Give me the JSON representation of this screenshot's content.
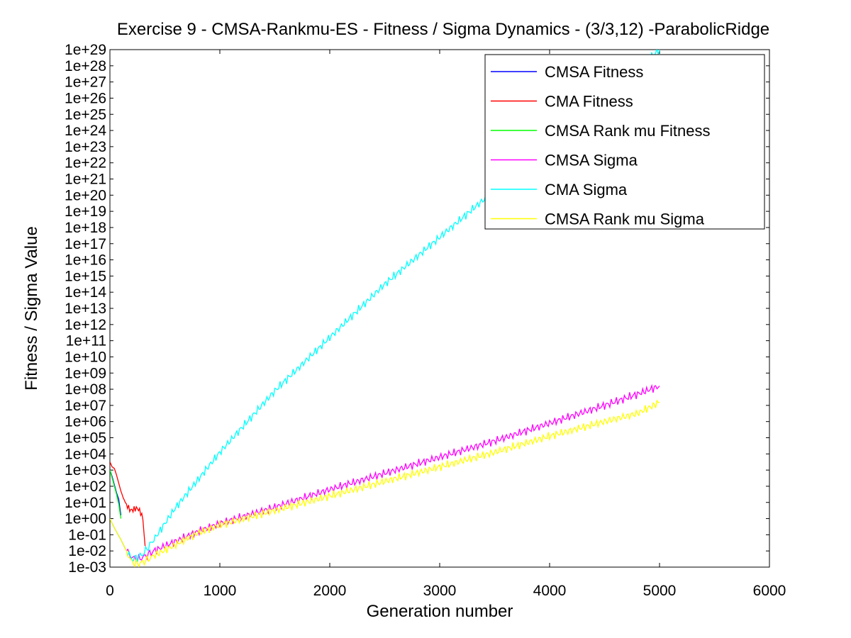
{
  "chart_data": {
    "type": "line",
    "title": "Exercise 9 - CMSA-Rankmu-ES - Fitness / Sigma Dynamics - (3/3,12) -ParabolicRidge",
    "xlabel": "Generation number",
    "ylabel": "Fitness / Sigma Value",
    "xlim": [
      0,
      6000
    ],
    "ylim_log10": [
      -3,
      29
    ],
    "y_scale": "log",
    "xticks": [
      0,
      1000,
      2000,
      3000,
      4000,
      5000,
      6000
    ],
    "xtick_labels": [
      "0",
      "1000",
      "2000",
      "3000",
      "4000",
      "5000",
      "6000"
    ],
    "ytick_labels": [
      "1e-03",
      "1e-02",
      "1e-01",
      "1e+00",
      "1e+01",
      "1e+02",
      "1e+03",
      "1e+04",
      "1e+05",
      "1e+06",
      "1e+07",
      "1e+08",
      "1e+09",
      "1e+10",
      "1e+11",
      "1e+12",
      "1e+13",
      "1e+14",
      "1e+15",
      "1e+16",
      "1e+17",
      "1e+18",
      "1e+19",
      "1e+20",
      "1e+21",
      "1e+22",
      "1e+23",
      "1e+24",
      "1e+25",
      "1e+26",
      "1e+27",
      "1e+28",
      "1e+29"
    ],
    "grid": false,
    "legend_position": "top-right",
    "series": [
      {
        "name": "CMSA Fitness",
        "color": "#0000ff",
        "x": [
          0,
          20,
          40,
          60,
          80,
          100
        ],
        "log10_y": [
          3.0,
          2.6,
          2.1,
          1.6,
          1.2,
          0.2
        ]
      },
      {
        "name": "CMA Fitness",
        "color": "#ff0000",
        "x": [
          0,
          20,
          40,
          60,
          80,
          100,
          120,
          140,
          160,
          180,
          200,
          230,
          260,
          280,
          300,
          310,
          320
        ],
        "log10_y": [
          3.5,
          3.2,
          3.1,
          2.7,
          2.2,
          1.7,
          1.3,
          1.0,
          0.8,
          0.65,
          0.6,
          0.55,
          0.5,
          0.4,
          0.1,
          -0.8,
          -1.7
        ]
      },
      {
        "name": "CMSA Rank mu Fitness",
        "color": "#00ff00",
        "x": [
          0,
          20,
          40,
          60,
          80,
          100
        ],
        "log10_y": [
          3.0,
          2.5,
          2.0,
          1.5,
          0.9,
          0.0
        ]
      },
      {
        "name": "CMSA Sigma",
        "color": "#ff00ff",
        "x": [
          0,
          20,
          50,
          100,
          150,
          200,
          250,
          300,
          400,
          600,
          800,
          1000,
          1500,
          2000,
          2500,
          3000,
          3500,
          4000,
          4500,
          4800,
          5000
        ],
        "log10_y": [
          0.0,
          -0.3,
          -0.7,
          -1.3,
          -2.0,
          -2.4,
          -2.5,
          -2.4,
          -2.0,
          -1.4,
          -0.8,
          -0.3,
          0.7,
          1.8,
          2.8,
          3.8,
          4.8,
          5.9,
          7.0,
          7.7,
          8.2
        ]
      },
      {
        "name": "CMA Sigma",
        "color": "#00ffff",
        "x": [
          0,
          20,
          50,
          100,
          150,
          200,
          250,
          300,
          400,
          600,
          800,
          1000,
          1500,
          2000,
          2500,
          3000,
          3500,
          4000,
          4500,
          5000
        ],
        "log10_y": [
          0.0,
          -0.3,
          -0.7,
          -1.3,
          -2.0,
          -2.5,
          -2.4,
          -2.2,
          -1.3,
          0.7,
          2.4,
          4.1,
          7.9,
          11.2,
          14.5,
          17.4,
          20.3,
          23.2,
          26.0,
          29.0
        ]
      },
      {
        "name": "CMSA Rank mu Sigma",
        "color": "#ffff00",
        "x": [
          0,
          20,
          50,
          100,
          150,
          200,
          250,
          300,
          400,
          600,
          800,
          1000,
          1500,
          2000,
          2500,
          3000,
          3500,
          4000,
          4500,
          4800,
          5000
        ],
        "log10_y": [
          0.0,
          -0.3,
          -0.7,
          -1.3,
          -2.0,
          -2.7,
          -2.8,
          -2.7,
          -2.3,
          -1.6,
          -0.9,
          -0.4,
          0.5,
          1.4,
          2.3,
          3.2,
          4.1,
          5.1,
          6.0,
          6.5,
          7.2
        ]
      }
    ]
  }
}
